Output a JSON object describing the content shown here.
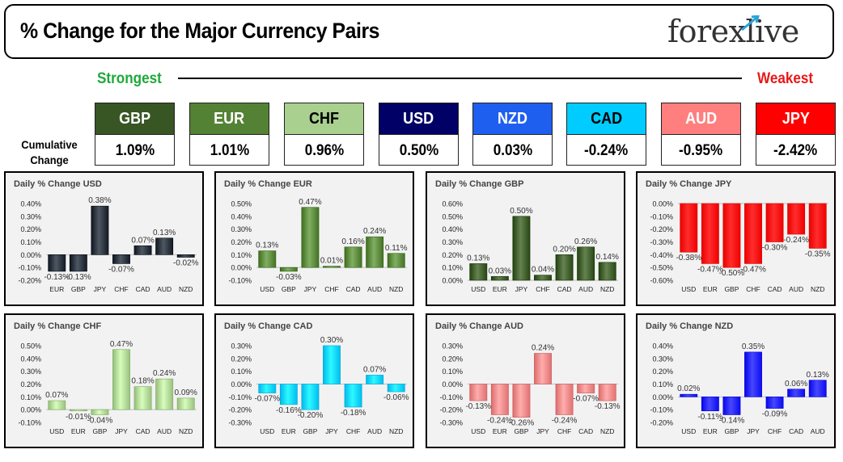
{
  "header": {
    "title": "% Change for the Major Currency Pairs",
    "logo_text": "forexlive"
  },
  "ranking": {
    "strongest_label": "Strongest",
    "weakest_label": "Weakest",
    "row_label_line1": "Cumulative",
    "row_label_line2": "Change",
    "currencies": [
      {
        "code": "GBP",
        "value": "1.09%",
        "bg": "#375623",
        "fg": "#ffffff"
      },
      {
        "code": "EUR",
        "value": "1.01%",
        "bg": "#548235",
        "fg": "#ffffff"
      },
      {
        "code": "CHF",
        "value": "0.96%",
        "bg": "#a9d08e",
        "fg": "#000000"
      },
      {
        "code": "USD",
        "value": "0.50%",
        "bg": "#000066",
        "fg": "#ffffff"
      },
      {
        "code": "NZD",
        "value": "0.03%",
        "bg": "#1f5ff0",
        "fg": "#ffffff"
      },
      {
        "code": "CAD",
        "value": "-0.24%",
        "bg": "#00ccff",
        "fg": "#000000"
      },
      {
        "code": "AUD",
        "value": "-0.95%",
        "bg": "#ff7f7f",
        "fg": "#ffffff"
      },
      {
        "code": "JPY",
        "value": "-2.42%",
        "bg": "#ff0000",
        "fg": "#ffffff"
      }
    ]
  },
  "chart_data": [
    {
      "type": "bar",
      "title": "Daily % Change USD",
      "categories": [
        "EUR",
        "GBP",
        "JPY",
        "CHF",
        "CAD",
        "AUD",
        "NZD"
      ],
      "values": [
        -0.13,
        -0.13,
        0.38,
        -0.07,
        0.07,
        0.13,
        -0.02
      ],
      "labels": [
        "-0.13%",
        "-0.13%",
        "0.38%",
        "-0.07%",
        "0.07%",
        "0.13%",
        "-0.02%"
      ],
      "yticks": [
        "0.40%",
        "0.30%",
        "0.20%",
        "0.10%",
        "0.00%",
        "-0.10%",
        "-0.20%"
      ],
      "ylim": [
        -0.2,
        0.4
      ],
      "color": "#222b35",
      "grid": false
    },
    {
      "type": "bar",
      "title": "Daily % Change EUR",
      "categories": [
        "USD",
        "GBP",
        "JPY",
        "CHF",
        "CAD",
        "AUD",
        "NZD"
      ],
      "values": [
        0.13,
        -0.03,
        0.47,
        0.01,
        0.16,
        0.24,
        0.11
      ],
      "labels": [
        "0.13%",
        "-0.03%",
        "0.47%",
        "0.01%",
        "0.16%",
        "0.24%",
        "0.11%"
      ],
      "yticks": [
        "0.50%",
        "0.40%",
        "0.30%",
        "0.20%",
        "0.10%",
        "0.00%",
        "-0.10%"
      ],
      "ylim": [
        -0.1,
        0.5
      ],
      "color": "#548235",
      "grid": false
    },
    {
      "type": "bar",
      "title": "Daily % Change GBP",
      "categories": [
        "USD",
        "EUR",
        "JPY",
        "CHF",
        "CAD",
        "AUD",
        "NZD"
      ],
      "values": [
        0.13,
        0.03,
        0.5,
        0.04,
        0.2,
        0.26,
        0.14
      ],
      "labels": [
        "0.13%",
        "0.03%",
        "0.50%",
        "0.04%",
        "0.20%",
        "0.26%",
        "0.14%"
      ],
      "yticks": [
        "0.60%",
        "0.50%",
        "0.40%",
        "0.30%",
        "0.20%",
        "0.10%",
        "0.00%"
      ],
      "ylim": [
        0,
        0.6
      ],
      "color": "#375623",
      "grid": false
    },
    {
      "type": "bar",
      "title": "Daily % Change JPY",
      "categories": [
        "USD",
        "EUR",
        "GBP",
        "CHF",
        "CAD",
        "AUD",
        "NZD"
      ],
      "values": [
        -0.38,
        -0.47,
        -0.5,
        -0.47,
        -0.3,
        -0.24,
        -0.35
      ],
      "labels": [
        "-0.38%",
        "-0.47%",
        "-0.50%",
        "-0.47%",
        "-0.30%",
        "-0.24%",
        "-0.35%"
      ],
      "yticks": [
        "0.00%",
        "-0.10%",
        "-0.20%",
        "-0.30%",
        "-0.40%",
        "-0.50%",
        "-0.60%"
      ],
      "ylim": [
        -0.6,
        0
      ],
      "color": "#ff0000",
      "grid": false
    },
    {
      "type": "bar",
      "title": "Daily % Change CHF",
      "categories": [
        "USD",
        "EUR",
        "GBP",
        "JPY",
        "CAD",
        "AUD",
        "NZD"
      ],
      "values": [
        0.07,
        -0.01,
        -0.04,
        0.47,
        0.18,
        0.24,
        0.09
      ],
      "labels": [
        "0.07%",
        "-0.01%",
        "-0.04%",
        "0.47%",
        "0.18%",
        "0.24%",
        "0.09%"
      ],
      "yticks": [
        "0.50%",
        "0.40%",
        "0.30%",
        "0.20%",
        "0.10%",
        "0.00%",
        "-0.10%"
      ],
      "ylim": [
        -0.1,
        0.5
      ],
      "color": "#a9d08e",
      "grid": false
    },
    {
      "type": "bar",
      "title": "Daily % Change CAD",
      "categories": [
        "USD",
        "EUR",
        "GBP",
        "JPY",
        "CHF",
        "AUD",
        "NZD"
      ],
      "values": [
        -0.07,
        -0.16,
        -0.2,
        0.3,
        -0.18,
        0.07,
        -0.06
      ],
      "labels": [
        "-0.07%",
        "-0.16%",
        "-0.20%",
        "0.30%",
        "-0.18%",
        "0.07%",
        "-0.06%"
      ],
      "yticks": [
        "0.30%",
        "0.20%",
        "0.10%",
        "0.00%",
        "-0.10%",
        "-0.20%",
        "-0.30%"
      ],
      "ylim": [
        -0.3,
        0.3
      ],
      "color": "#00ccff",
      "grid": false
    },
    {
      "type": "bar",
      "title": "Daily % Change AUD",
      "categories": [
        "USD",
        "EUR",
        "GBP",
        "JPY",
        "CHF",
        "CAD",
        "NZD"
      ],
      "values": [
        -0.13,
        -0.24,
        -0.26,
        0.24,
        -0.24,
        -0.07,
        -0.13
      ],
      "labels": [
        "-0.13%",
        "-0.24%",
        "-0.26%",
        "0.24%",
        "-0.24%",
        "-0.07%",
        "-0.13%"
      ],
      "yticks": [
        "0.30%",
        "0.20%",
        "0.10%",
        "0.00%",
        "-0.10%",
        "-0.20%",
        "-0.30%"
      ],
      "ylim": [
        -0.3,
        0.3
      ],
      "color": "#f08080",
      "grid": false
    },
    {
      "type": "bar",
      "title": "Daily % Change NZD",
      "categories": [
        "USD",
        "EUR",
        "GBP",
        "JPY",
        "CHF",
        "CAD",
        "AUD"
      ],
      "values": [
        0.02,
        -0.11,
        -0.14,
        0.35,
        -0.09,
        0.06,
        0.13
      ],
      "labels": [
        "0.02%",
        "-0.11%",
        "-0.14%",
        "0.35%",
        "-0.09%",
        "0.06%",
        "0.13%"
      ],
      "yticks": [
        "0.40%",
        "0.30%",
        "0.20%",
        "0.10%",
        "0.00%",
        "-0.10%",
        "-0.20%"
      ],
      "ylim": [
        -0.2,
        0.4
      ],
      "color": "#1a1aff",
      "grid": false
    }
  ]
}
